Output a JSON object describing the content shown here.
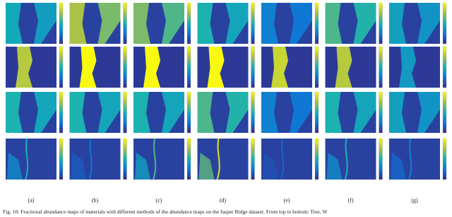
{
  "figure": {
    "labels": [
      "(a)",
      "(b)",
      "(c)",
      "(d)",
      "(e)",
      "(f)",
      "(g)"
    ],
    "caption": "Fig. 10: Fractional abundance maps of materials with different methods of the abundance maps on the Jasper Ridge dataset. From top to bottom: Tree, W"
  }
}
